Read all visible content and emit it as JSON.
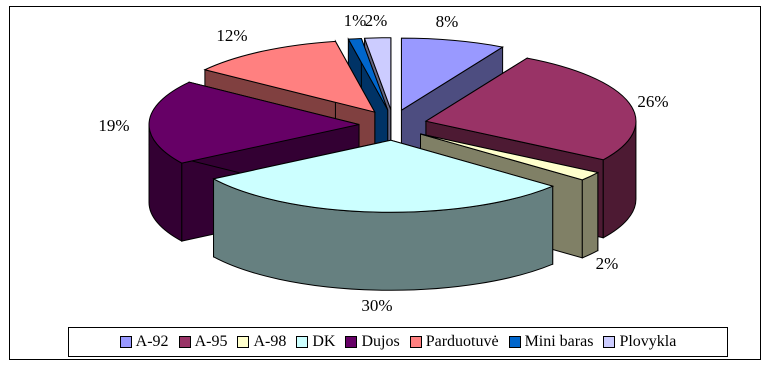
{
  "chart_data": {
    "type": "pie",
    "style": "3d-exploded",
    "title": "",
    "legend_position": "bottom",
    "slices": [
      {
        "name": "A-92",
        "value": 8,
        "label": "8%",
        "color": "#9999ff",
        "side": "#4d4d80"
      },
      {
        "name": "A-95",
        "value": 26,
        "label": "26%",
        "color": "#993366",
        "side": "#4d1a33"
      },
      {
        "name": "A-98",
        "value": 2,
        "label": "2%",
        "color": "#ffffcc",
        "side": "#808066"
      },
      {
        "name": "DK",
        "value": 30,
        "label": "30%",
        "color": "#ccffff",
        "side": "#668080"
      },
      {
        "name": "Dujos",
        "value": 19,
        "label": "19%",
        "color": "#660066",
        "side": "#330033"
      },
      {
        "name": "Parduotuvė",
        "value": 12,
        "label": "12%",
        "color": "#ff8080",
        "side": "#804040"
      },
      {
        "name": "Mini baras",
        "value": 1,
        "label": "1%",
        "color": "#0066cc",
        "side": "#003366"
      },
      {
        "name": "Plovykla",
        "value": 2,
        "label": "2%",
        "color": "#ccccff",
        "side": "#666680"
      }
    ]
  }
}
